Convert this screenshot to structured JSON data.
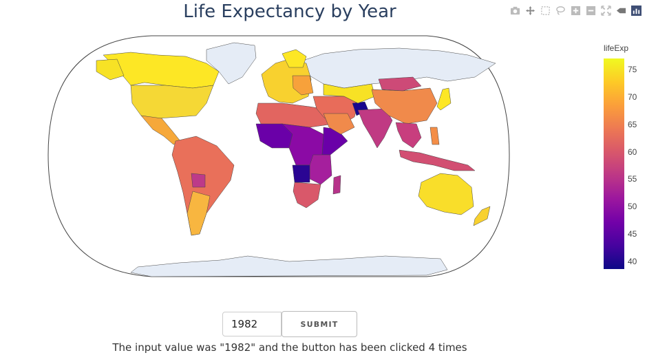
{
  "title": "Life Expectancy by Year",
  "colorbar": {
    "title": "lifeExp",
    "ticks": [
      "75",
      "70",
      "65",
      "60",
      "55",
      "50",
      "45",
      "40"
    ],
    "range": [
      38,
      77
    ]
  },
  "modebar": [
    "camera-icon",
    "pan-icon",
    "box-select-icon",
    "lasso-icon",
    "zoom-in-icon",
    "zoom-out-icon",
    "reset-icon",
    "hover-icon",
    "plotly-logo-icon"
  ],
  "input": {
    "value": "1982"
  },
  "button": {
    "label": "SUBMIT"
  },
  "output_text": "The input value was \"1982\" and the button has been clicked 4 times",
  "colors": {
    "no_data": "#e5ecf6",
    "title": "#2a3f5f"
  }
}
